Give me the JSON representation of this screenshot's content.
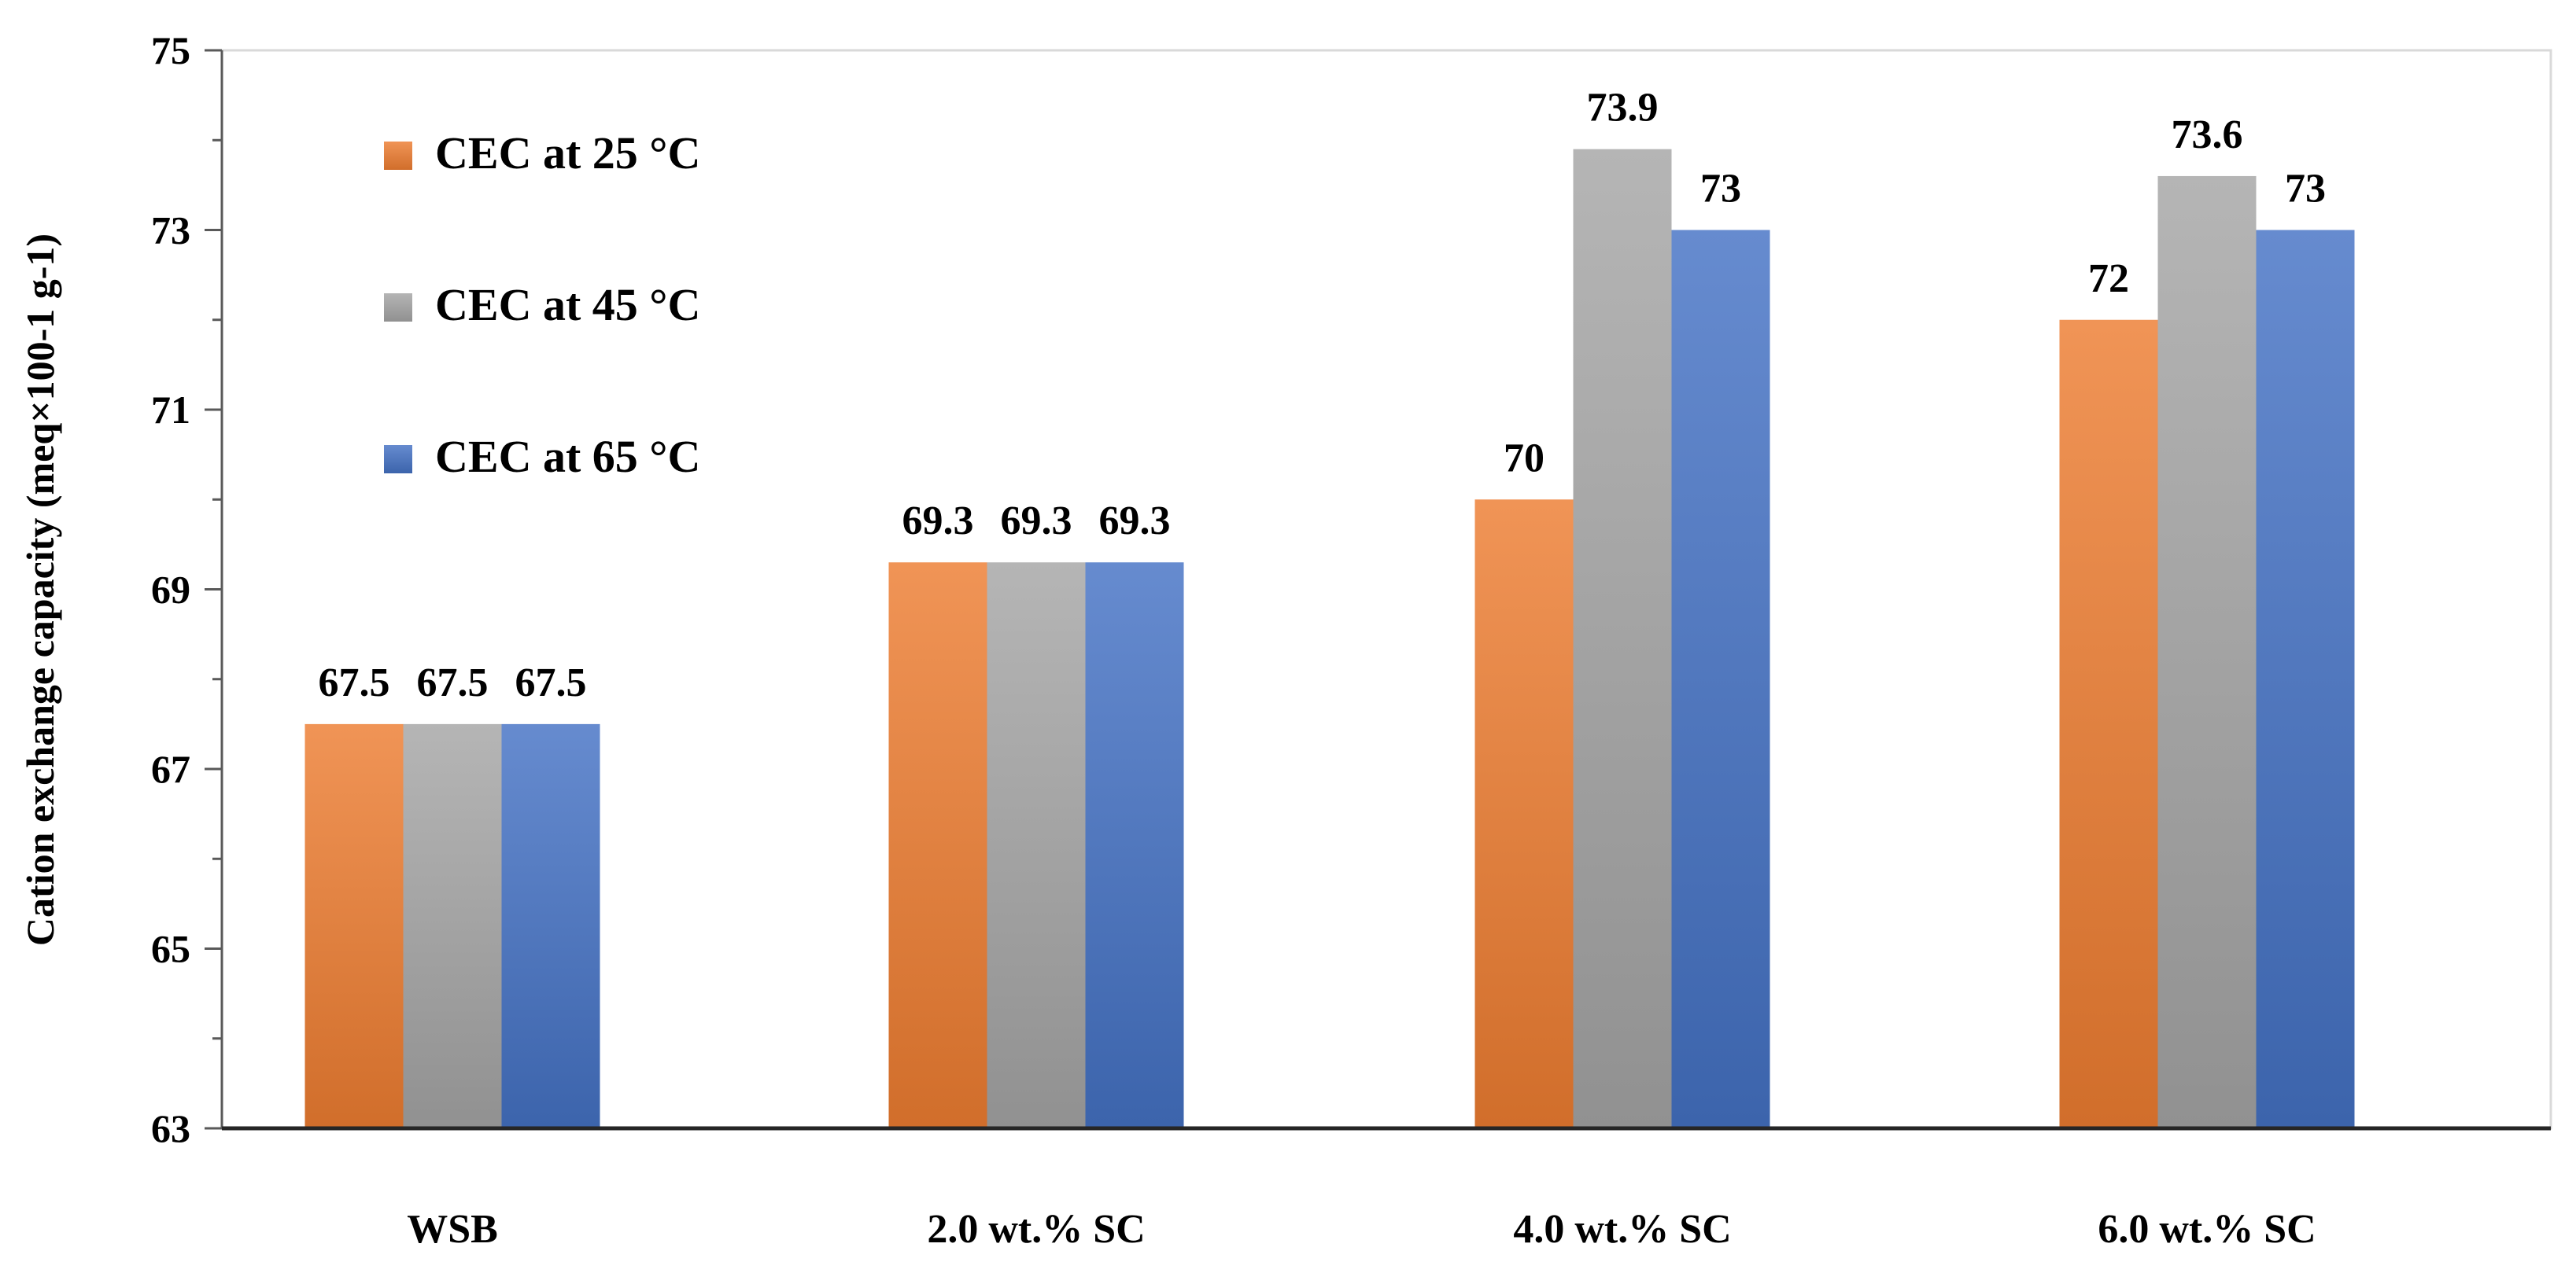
{
  "chart_data": {
    "type": "bar",
    "title": "",
    "xlabel": "",
    "ylabel": "Cation exchange capacity (meq×100-1 g-1)",
    "ylim": [
      63,
      75
    ],
    "yticks": [
      63,
      65,
      67,
      69,
      71,
      73,
      75
    ],
    "categories": [
      "WSB",
      "2.0 wt.% SC",
      "4.0 wt.% SC",
      "6.0 wt.% SC"
    ],
    "series": [
      {
        "name": "CEC at 25 °C",
        "color": "#ED7D31",
        "values": [
          67.5,
          69.3,
          70,
          72
        ]
      },
      {
        "name": "CEC at 45 °C",
        "color": "#A5A5A5",
        "values": [
          67.5,
          69.3,
          73.9,
          73.6
        ]
      },
      {
        "name": "CEC at 65 °C",
        "color": "#4472C4",
        "values": [
          67.5,
          69.3,
          73,
          73
        ]
      }
    ],
    "data_labels": [
      [
        "67.5",
        "69.3",
        "70",
        "72"
      ],
      [
        "67.5",
        "69.3",
        "73.9",
        "73.6"
      ],
      [
        "67.5",
        "69.3",
        "73",
        "73"
      ]
    ],
    "legend_position": "top-left",
    "grid": false
  }
}
